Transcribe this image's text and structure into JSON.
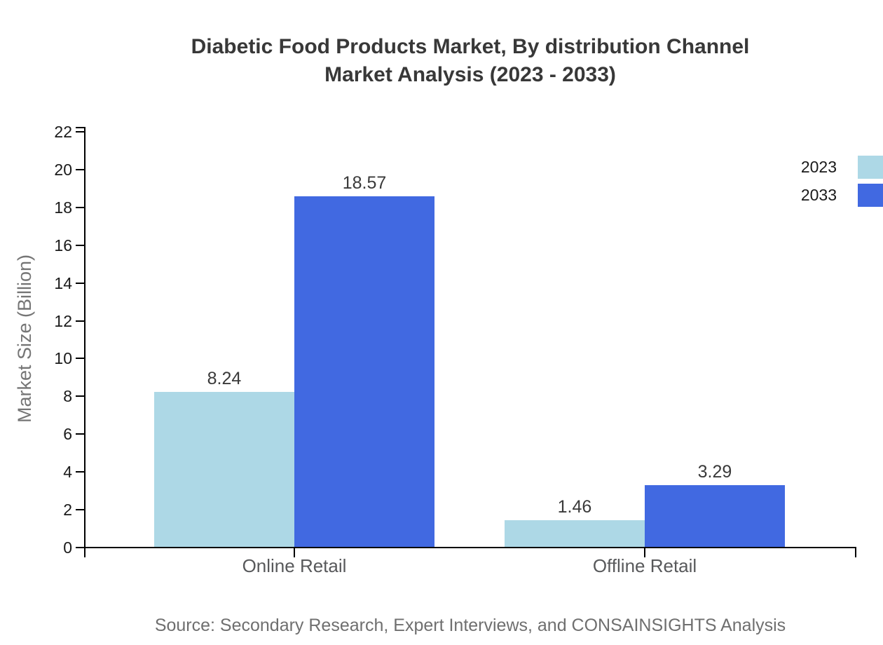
{
  "title": {
    "line1": "Diabetic Food Products Market, By distribution Channel",
    "line2": "Market Analysis (2023 - 2033)"
  },
  "source": "Source: Secondary Research, Expert Interviews, and CONSAINSIGHTS Analysis",
  "chart_data": {
    "type": "bar",
    "title": "Diabetic Food Products Market, By distribution Channel Market Analysis (2023 - 2033)",
    "categories": [
      "Online Retail",
      "Offline Retail"
    ],
    "series": [
      {
        "name": "2023",
        "color": "#ADD8E6",
        "values": [
          8.24,
          1.46
        ]
      },
      {
        "name": "2033",
        "color": "#4169E1",
        "values": [
          18.57,
          3.29
        ]
      }
    ],
    "xlabel": "",
    "ylabel": "Market Size (Billion)",
    "ylim": [
      0,
      22
    ],
    "ytick_step": 2,
    "ytick_labels": [
      "0",
      "2",
      "4",
      "6",
      "8",
      "10",
      "12",
      "14",
      "16",
      "18",
      "20",
      "22"
    ],
    "value_labels": [
      "8.24",
      "18.57",
      "1.46",
      "3.29"
    ],
    "grid": false,
    "legend_position": "top-right",
    "axis_color": "#000000",
    "tick_label_color": "#1a1a1a",
    "category_label_color": "#58595b",
    "value_label_color": "#3a3a3a",
    "title_color": "#383838",
    "ylabel_color": "#757575",
    "source_color": "#6f6f6f"
  }
}
